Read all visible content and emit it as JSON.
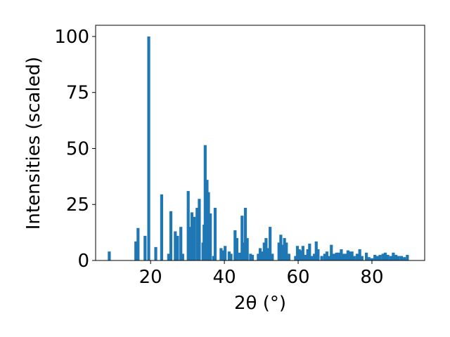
{
  "chart_data": {
    "type": "bar",
    "xlabel": "2θ (°)",
    "ylabel": "Intensities (scaled)",
    "color": "#1f77b4",
    "bar_width": 0.8,
    "x": [
      8.8,
      16,
      16.6,
      18.5,
      19.5,
      21.4,
      23,
      24.9,
      25.5,
      26.7,
      27.3,
      28.2,
      28.7,
      30.2,
      30.7,
      31.2,
      31.8,
      32.6,
      33.2,
      34.2,
      34.5,
      34.8,
      35.3,
      35.7,
      36.2,
      37.1,
      37.5,
      39.1,
      39.6,
      40.2,
      41.3,
      41.8,
      42.9,
      43.4,
      44.2,
      44.8,
      45.3,
      45.7,
      46.2,
      47.1,
      47.6,
      49.2,
      49.7,
      50.2,
      50.8,
      51.3,
      51.8,
      52.4,
      53,
      54.8,
      55.3,
      55.8,
      56.3,
      56.8,
      57.5,
      59.3,
      59.8,
      60.3,
      60.8,
      61.3,
      62,
      62.6,
      63.1,
      63.6,
      64.4,
      64.9,
      65.4,
      66.4,
      67.2,
      67.8,
      68.4,
      69,
      69.6,
      70.4,
      71,
      71.7,
      72.3,
      73,
      73.5,
      74,
      74.6,
      75.2,
      76,
      76.7,
      77.3,
      78.5,
      79.2,
      80,
      80.8,
      81.5,
      82.2,
      83,
      83.6,
      84.3,
      85.1,
      85.8,
      86.5,
      87.2,
      88,
      88.8,
      89.6
    ],
    "values": [
      4,
      8.5,
      14.5,
      11,
      100,
      6,
      29.5,
      3,
      22,
      13,
      11,
      15,
      3,
      31,
      15,
      21.5,
      19.5,
      23.5,
      27.5,
      8,
      16,
      51.5,
      36,
      30.5,
      21,
      2,
      23.5,
      5.5,
      4.5,
      6.5,
      4,
      3,
      13.5,
      10,
      3.5,
      20,
      8,
      23.5,
      10,
      3,
      2.5,
      3,
      5.5,
      4,
      8,
      10,
      5.5,
      15,
      3,
      8,
      11.5,
      7,
      10,
      8,
      3,
      2,
      6.5,
      5,
      4.5,
      6.5,
      2.5,
      5,
      7.5,
      2,
      3,
      8.5,
      5,
      2,
      3,
      4,
      2,
      7,
      3,
      3.5,
      3.5,
      5,
      3,
      3,
      4.5,
      4,
      4,
      2,
      3,
      5,
      2,
      3.5,
      1.5,
      1,
      2.5,
      2,
      2.5,
      3,
      3.5,
      2.5,
      2,
      3.5,
      2.5,
      2,
      2,
      1.5,
      2.5
    ],
    "xlim": [
      5.1,
      94.3
    ],
    "ylim": [
      0,
      105
    ],
    "xticks": [
      20,
      40,
      60,
      80
    ],
    "yticks": [
      0,
      25,
      50,
      75,
      100
    ]
  }
}
